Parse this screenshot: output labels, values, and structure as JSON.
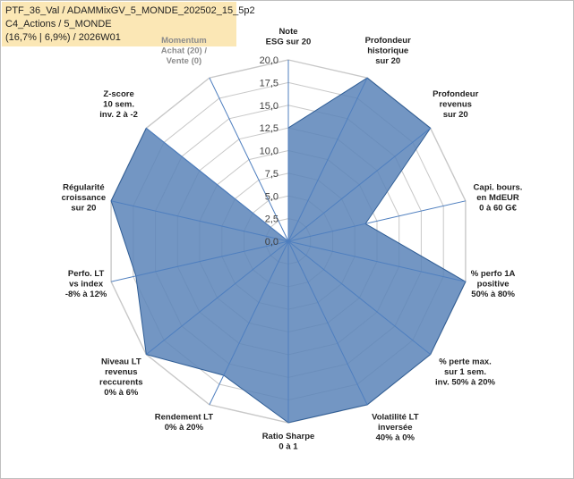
{
  "header": {
    "line1": "PTF_36_Val / ADAMMixGV_5_MONDE_202502_15_5p2",
    "line2": "C4_Actions / 5_MONDE",
    "line3": "(16,7% | 6,9%) / 2026W01"
  },
  "chart_data": {
    "type": "radar",
    "title": "",
    "rmin": 0,
    "rmax": 20,
    "tick_step": 2.5,
    "tick_labels": [
      "0,0",
      "2,5",
      "5,0",
      "7,5",
      "10,0",
      "12,5",
      "15,0",
      "17,5",
      "20,0"
    ],
    "axes": [
      {
        "label": [
          "Note",
          "ESG sur 20"
        ],
        "muted": false
      },
      {
        "label": [
          "Profondeur",
          "historique",
          "sur 20"
        ],
        "muted": false
      },
      {
        "label": [
          "Profondeur",
          "revenus",
          "sur 20"
        ],
        "muted": false
      },
      {
        "label": [
          "Capi. bours.",
          "en MdEUR",
          "0 à 60 G€"
        ],
        "muted": false
      },
      {
        "label": [
          "% perfo 1A",
          "positive",
          "50% à 80%"
        ],
        "muted": false
      },
      {
        "label": [
          "% perte max.",
          "sur 1 sem.",
          "inv. 50% à 20%"
        ],
        "muted": false
      },
      {
        "label": [
          "Volatilité LT",
          "inversée",
          "40% à 0%"
        ],
        "muted": false
      },
      {
        "label": [
          "Ratio Sharpe",
          "0 à 1"
        ],
        "muted": false
      },
      {
        "label": [
          "Rendement LT",
          "0% à 20%"
        ],
        "muted": false
      },
      {
        "label": [
          "Niveau LT",
          "revenus",
          "reccurents",
          "0% à 6%"
        ],
        "muted": false
      },
      {
        "label": [
          "Perfo. LT",
          "vs index",
          "-8% à 12%"
        ],
        "muted": false
      },
      {
        "label": [
          "Régularité",
          "croissance",
          "sur 20"
        ],
        "muted": false
      },
      {
        "label": [
          "Z-score",
          "10 sem.",
          "inv. 2 à -2"
        ],
        "muted": false
      },
      {
        "label": [
          "Momentum",
          "Achat (20) /",
          "Vente (0)"
        ],
        "muted": true
      }
    ],
    "series": [
      {
        "values": [
          12.5,
          20.0,
          20.0,
          8.7,
          20.0,
          20.0,
          20.0,
          20.0,
          16.4,
          20.0,
          17.2,
          20.0,
          20.0,
          0.0
        ]
      }
    ],
    "colors": {
      "fill": "#5b84b8",
      "fill_opacity": 0.85,
      "stroke": "#2f5d95",
      "grid": "#c8c8c8",
      "spoke": "#4f7fbf",
      "zero_line": "#000000"
    }
  }
}
